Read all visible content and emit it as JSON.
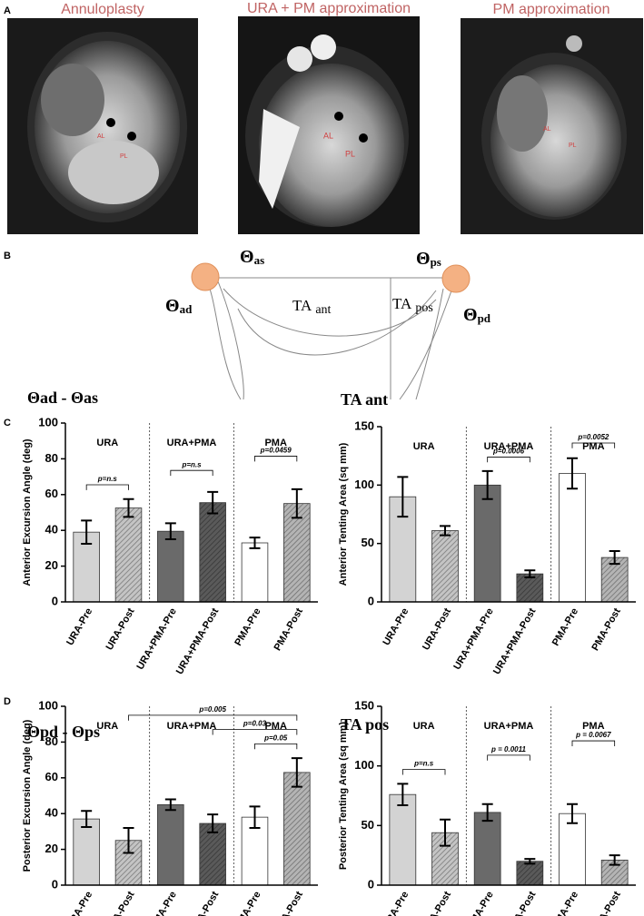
{
  "panel_labels": [
    "A",
    "B",
    "C",
    "D"
  ],
  "images": [
    {
      "title": "Annuloplasty",
      "labels": [
        "AL",
        "PL"
      ]
    },
    {
      "title": "URA + PM approximation",
      "labels": [
        "AL",
        "PL"
      ]
    },
    {
      "title": "PM approximation",
      "labels": [
        "AL",
        "PL"
      ]
    }
  ],
  "diagram": {
    "labels": [
      {
        "main": "Θ",
        "sub": "ad"
      },
      {
        "main": "Θ",
        "sub": "as"
      },
      {
        "main": "Θ",
        "sub": "ps"
      },
      {
        "main": "Θ",
        "sub": "pd"
      },
      {
        "main": "TA",
        "sub": "ant"
      },
      {
        "main": "TA",
        "sub": "pos"
      }
    ]
  },
  "chart_data": [
    {
      "type": "bar",
      "title": "Θad - Θas",
      "y_label": "Anterior Excursion Angle (deg)",
      "categories": [
        "URA-Pre",
        "URA-Post",
        "URA+PMA-Pre",
        "URA+PMA-Post",
        "PMA-Pre",
        "PMA-Post"
      ],
      "groups": [
        "URA",
        "URA+PMA",
        "PMA"
      ],
      "values": [
        39,
        52.5,
        39.5,
        55.5,
        33,
        55
      ],
      "errors": [
        6.5,
        5,
        4.5,
        6,
        3,
        8
      ],
      "colors": [
        "#d3d3d3",
        "#c4c4c4",
        "#6a6a6a",
        "#5a5a5a",
        "#ffffff",
        "#b4b4b4"
      ],
      "hatch": [
        false,
        true,
        false,
        true,
        false,
        true
      ],
      "annotations": [
        {
          "text": "p=n.s",
          "from": 0,
          "to": 1
        },
        {
          "text": "p=n.s",
          "from": 2,
          "to": 3
        },
        {
          "text": "p=0.0459",
          "from": 4,
          "to": 5
        }
      ],
      "ylim": [
        0,
        100
      ],
      "yticks": [
        0,
        20,
        40,
        60,
        80,
        100
      ]
    },
    {
      "type": "bar",
      "title": "TA ant",
      "y_label": "Anterior Tenting Area (sq mm)",
      "categories": [
        "URA-Pre",
        "URA-Post",
        "URA+PMA-Pre",
        "URA+PMA-Post",
        "PMA-Pre",
        "PMA-Post"
      ],
      "groups": [
        "URA",
        "URA+PMA",
        "PMA"
      ],
      "values": [
        90,
        61,
        100,
        24,
        110,
        38
      ],
      "errors": [
        17,
        4,
        12,
        3,
        13,
        5.5
      ],
      "colors": [
        "#d3d3d3",
        "#c4c4c4",
        "#6a6a6a",
        "#5a5a5a",
        "#ffffff",
        "#b4b4b4"
      ],
      "hatch": [
        false,
        true,
        false,
        true,
        false,
        true
      ],
      "annotations": [
        {
          "text": "p=0.0006",
          "from": 2,
          "to": 3
        },
        {
          "text": "p=0.0052",
          "from": 4,
          "to": 5
        }
      ],
      "ylim": [
        0,
        150
      ],
      "yticks": [
        0,
        50,
        100,
        150
      ]
    },
    {
      "type": "bar",
      "title": "Θpd - Θps",
      "y_label": "Posterior Excursion Angle (deg)",
      "categories": [
        "URA-Pre",
        "URA-Post",
        "URA+PMA-Pre",
        "URA+PMA-Post",
        "PMA-Pre",
        "PMA-Post"
      ],
      "groups": [
        "URA",
        "URA+PMA",
        "PMA"
      ],
      "values": [
        37,
        25,
        45,
        34.5,
        38,
        63
      ],
      "errors": [
        4.5,
        7,
        3,
        5,
        6,
        8
      ],
      "colors": [
        "#d3d3d3",
        "#c4c4c4",
        "#6a6a6a",
        "#5a5a5a",
        "#ffffff",
        "#b4b4b4"
      ],
      "hatch": [
        false,
        true,
        false,
        true,
        false,
        true
      ],
      "annotations": [
        {
          "text": "p=0.05",
          "from": 4,
          "to": 5
        },
        {
          "text": "p=0.03",
          "from": 3,
          "to": 5
        },
        {
          "text": "p=0.005",
          "from": 1,
          "to": 5
        }
      ],
      "ylim": [
        0,
        100
      ],
      "yticks": [
        0,
        20,
        40,
        60,
        80,
        100
      ]
    },
    {
      "type": "bar",
      "title": "TA pos",
      "y_label": "Posterior Tenting Area (sq mm)",
      "categories": [
        "URA-Pre",
        "URA-Post",
        "URA+PMA-Pre",
        "URA+PMA-Post",
        "PMA-Pre",
        "PMA-Post"
      ],
      "groups": [
        "URA",
        "URA+PMA",
        "PMA"
      ],
      "values": [
        76,
        44,
        61,
        20,
        60,
        21
      ],
      "errors": [
        9,
        11,
        7,
        2,
        8,
        4
      ],
      "colors": [
        "#d3d3d3",
        "#c4c4c4",
        "#6a6a6a",
        "#5a5a5a",
        "#ffffff",
        "#b4b4b4"
      ],
      "hatch": [
        false,
        true,
        false,
        true,
        false,
        true
      ],
      "annotations": [
        {
          "text": "p=n.s",
          "from": 0,
          "to": 1
        },
        {
          "text": "p = 0.0011",
          "from": 2,
          "to": 3
        },
        {
          "text": "p = 0.0067",
          "from": 4,
          "to": 5
        }
      ],
      "ylim": [
        0,
        150
      ],
      "yticks": [
        0,
        50,
        100,
        150
      ]
    }
  ]
}
